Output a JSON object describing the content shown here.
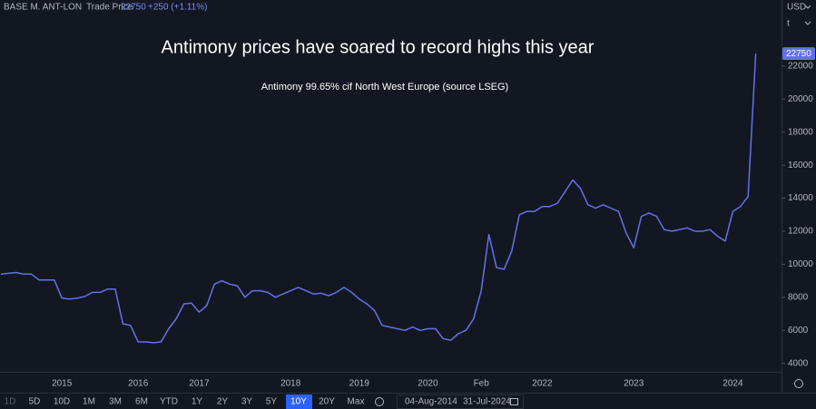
{
  "header": {
    "symbol": "BASE M. ANT-LON",
    "field": "Trade Price",
    "change": "+250 (+1.11%)",
    "currency": "USD",
    "unit": "t"
  },
  "toolbar": {
    "ranges": [
      "1D",
      "5D",
      "10D",
      "1M",
      "3M",
      "6M",
      "YTD",
      "1Y",
      "2Y",
      "3Y",
      "5Y",
      "10Y",
      "20Y",
      "Max"
    ],
    "active": "10Y",
    "date_from": "04-Aug-2014",
    "date_to": "31-Jul-2024"
  },
  "chart_data": {
    "type": "line",
    "title": "Antimony prices have soared to record highs this year",
    "subtitle": "Antimony 99.65% cif North West Europe (source LSEG)",
    "categories": [
      null,
      null,
      null,
      null,
      null,
      null,
      null,
      null,
      "2015",
      null,
      null,
      null,
      null,
      null,
      null,
      null,
      null,
      null,
      "2016",
      null,
      null,
      null,
      null,
      null,
      null,
      null,
      "2017",
      null,
      null,
      null,
      null,
      null,
      null,
      null,
      null,
      null,
      null,
      null,
      "2018",
      null,
      null,
      null,
      null,
      null,
      null,
      null,
      null,
      "2019",
      null,
      null,
      null,
      null,
      null,
      null,
      null,
      null,
      "2020",
      null,
      null,
      null,
      null,
      null,
      null,
      "Feb",
      null,
      null,
      null,
      null,
      null,
      null,
      null,
      "2022",
      null,
      null,
      null,
      null,
      null,
      null,
      null,
      null,
      null,
      null,
      null,
      "2023",
      null,
      null,
      null,
      null,
      null,
      null,
      null,
      null,
      null,
      null,
      null,
      null,
      "2024",
      null,
      null,
      null
    ],
    "series": [
      {
        "name": "Trade Price",
        "color": "#6272e8",
        "values": [
          9400,
          9450,
          9500,
          9400,
          9400,
          9050,
          9050,
          9050,
          7950,
          7900,
          7950,
          8050,
          8300,
          8300,
          8500,
          8500,
          6400,
          6300,
          5300,
          5300,
          5250,
          5300,
          6100,
          6700,
          7600,
          7650,
          7100,
          7500,
          8800,
          9000,
          8800,
          8700,
          8000,
          8400,
          8400,
          8300,
          8000,
          8200,
          8400,
          8600,
          8400,
          8200,
          8250,
          8100,
          8300,
          8600,
          8300,
          7900,
          7600,
          7200,
          6300,
          6200,
          6100,
          6000,
          6200,
          6000,
          6100,
          6100,
          5500,
          5400,
          5800,
          6000,
          6700,
          8400,
          11800,
          9800,
          9700,
          10800,
          13000,
          13200,
          13200,
          13500,
          13500,
          13700,
          14400,
          15100,
          14600,
          13600,
          13400,
          13600,
          13400,
          13200,
          11900,
          11000,
          12900,
          13100,
          12900,
          12100,
          12000,
          12100,
          12200,
          12000,
          12000,
          12100,
          11700,
          11400,
          13200,
          13500,
          14100,
          22750
        ]
      }
    ],
    "ylim": [
      3600,
      24900
    ],
    "yticks": [
      4000,
      6000,
      8000,
      10000,
      12000,
      14000,
      16000,
      18000,
      20000,
      22000
    ],
    "grid": false
  }
}
